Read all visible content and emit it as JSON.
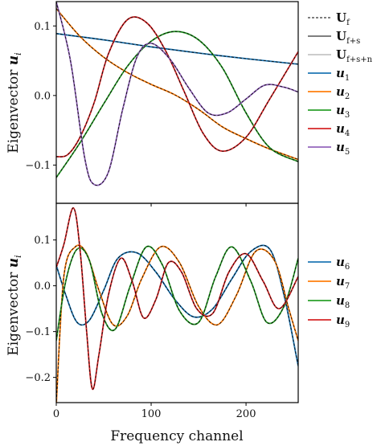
{
  "chart_data": [
    {
      "type": "line",
      "title": "",
      "xlabel": "",
      "ylabel": "Eigenvector u_i",
      "ylabel_text": "Eigenvector ",
      "ylabel_symbol": "u",
      "ylabel_sub": "i",
      "xlim": [
        0,
        255
      ],
      "ylim": [
        -0.155,
        0.135
      ],
      "xticks": [
        0,
        100,
        200
      ],
      "yticks": [
        -0.1,
        0.0,
        0.1
      ],
      "ytick_labels": [
        "−0.1",
        "0.0",
        "0.1"
      ],
      "x_tick_labels_shown": false,
      "style_legend": [
        {
          "name": "U",
          "sub": "f",
          "style": "dashed",
          "color": "#000000"
        },
        {
          "name": "U",
          "sub": "f+s",
          "style": "solid",
          "color": "#555555"
        },
        {
          "name": "U",
          "sub": "f+s+n",
          "style": "solid",
          "color": "#bbbbbb"
        }
      ],
      "series": [
        {
          "name": "u",
          "sub": "1",
          "color": "#1f77b4",
          "x": [
            0,
            50,
            100,
            150,
            200,
            255
          ],
          "values": [
            0.089,
            0.08,
            0.07,
            0.061,
            0.053,
            0.045
          ]
        },
        {
          "name": "u",
          "sub": "2",
          "color": "#ff7f0e",
          "x": [
            0,
            25,
            50,
            75,
            100,
            125,
            150,
            175,
            200,
            225,
            255
          ],
          "values": [
            0.125,
            0.085,
            0.055,
            0.033,
            0.016,
            0.001,
            -0.02,
            -0.045,
            -0.062,
            -0.077,
            -0.092
          ]
        },
        {
          "name": "u",
          "sub": "3",
          "color": "#2ca02c",
          "x": [
            0,
            25,
            50,
            75,
            100,
            125,
            150,
            175,
            200,
            225,
            255
          ],
          "values": [
            -0.118,
            -0.068,
            -0.012,
            0.042,
            0.078,
            0.092,
            0.08,
            0.04,
            -0.025,
            -0.075,
            -0.095
          ]
        },
        {
          "name": "u",
          "sub": "4",
          "color": "#d62728",
          "x": [
            0,
            12,
            25,
            40,
            55,
            75,
            95,
            115,
            135,
            155,
            175,
            200,
            225,
            255
          ],
          "values": [
            -0.088,
            -0.085,
            -0.06,
            -0.01,
            0.06,
            0.109,
            0.105,
            0.065,
            0.005,
            -0.055,
            -0.08,
            -0.06,
            -0.005,
            0.063
          ]
        },
        {
          "name": "u",
          "sub": "5",
          "color": "#9467bd",
          "x": [
            0,
            15,
            30,
            40,
            55,
            70,
            85,
            100,
            120,
            140,
            160,
            180,
            200,
            220,
            240,
            255
          ],
          "values": [
            0.135,
            0.05,
            -0.09,
            -0.128,
            -0.11,
            -0.02,
            0.055,
            0.075,
            0.052,
            0.01,
            -0.025,
            -0.025,
            -0.005,
            0.015,
            0.012,
            0.005
          ]
        }
      ]
    },
    {
      "type": "line",
      "title": "",
      "xlabel": "Frequency channel",
      "ylabel": "Eigenvector u_i",
      "ylabel_text": "Eigenvector ",
      "ylabel_symbol": "u",
      "ylabel_sub": "i",
      "xlim": [
        0,
        255
      ],
      "ylim": [
        -0.255,
        0.18
      ],
      "xticks": [
        0,
        100,
        200
      ],
      "xtick_labels": [
        "0",
        "100",
        "200"
      ],
      "yticks": [
        -0.2,
        -0.1,
        0.0,
        0.1
      ],
      "ytick_labels": [
        "−0.2",
        "−0.1",
        "0.0",
        "0.1"
      ],
      "series": [
        {
          "name": "u",
          "sub": "6",
          "color": "#1f77b4",
          "x": [
            0,
            10,
            22,
            35,
            50,
            65,
            85,
            105,
            125,
            145,
            165,
            185,
            205,
            225,
            240,
            255
          ],
          "values": [
            0.045,
            -0.02,
            -0.08,
            -0.075,
            -0.01,
            0.06,
            0.072,
            0.03,
            -0.03,
            -0.068,
            -0.05,
            0.015,
            0.075,
            0.08,
            -0.02,
            -0.175
          ]
        },
        {
          "name": "u",
          "sub": "7",
          "color": "#ff7f0e",
          "x": [
            0,
            8,
            20,
            32,
            45,
            60,
            75,
            90,
            110,
            130,
            150,
            170,
            190,
            210,
            230,
            245,
            255
          ],
          "values": [
            -0.26,
            0.02,
            0.085,
            0.07,
            -0.01,
            -0.085,
            -0.065,
            0.015,
            0.085,
            0.05,
            -0.045,
            -0.085,
            -0.02,
            0.075,
            0.055,
            -0.05,
            -0.12
          ]
        },
        {
          "name": "u",
          "sub": "8",
          "color": "#2ca02c",
          "x": [
            0,
            10,
            22,
            35,
            48,
            62,
            78,
            95,
            112,
            130,
            150,
            168,
            185,
            205,
            222,
            240,
            255
          ],
          "values": [
            -0.12,
            0.01,
            0.08,
            0.055,
            -0.06,
            -0.095,
            0.0,
            0.085,
            0.045,
            -0.055,
            -0.08,
            0.02,
            0.085,
            0.01,
            -0.08,
            -0.045,
            0.06
          ]
        },
        {
          "name": "u",
          "sub": "9",
          "color": "#d62728",
          "x": [
            0,
            8,
            18,
            25,
            32,
            38,
            45,
            55,
            68,
            80,
            92,
            105,
            118,
            132,
            148,
            165,
            182,
            200,
            218,
            235,
            255
          ],
          "values": [
            0.04,
            0.09,
            0.17,
            0.08,
            -0.1,
            -0.225,
            -0.15,
            -0.02,
            0.06,
            0.01,
            -0.07,
            -0.03,
            0.05,
            0.03,
            -0.05,
            -0.06,
            0.03,
            0.07,
            0.01,
            -0.05,
            0.02
          ]
        }
      ]
    }
  ]
}
